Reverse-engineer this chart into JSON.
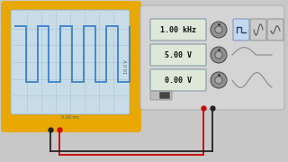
{
  "bg_color": "#c8c8c8",
  "osc_bg": "#e8a800",
  "osc_screen_bg": "#c8dce8",
  "osc_grid_color": "#a0bece",
  "osc_signal_color": "#4488cc",
  "osc_border_inner": "#d8b820",
  "fg_bg": "#d4d4d4",
  "fg_border": "#b8b8b8",
  "display_bg": "#dde8d8",
  "display_border": "#8899aa",
  "display_texts": [
    "1.00 kHz",
    "5.00 V",
    "0.00 V"
  ],
  "wire_red": "#cc0000",
  "wire_black": "#222222",
  "knob_color": "#909090",
  "knob_border": "#505050",
  "square_wave_color": "#4488cc",
  "highlight_btn_bg": "#c0d8f0",
  "highlight_btn_border": "#8899bb",
  "btn_bg": "#cccccc",
  "btn_border": "#999999",
  "wave_color": "#888888"
}
